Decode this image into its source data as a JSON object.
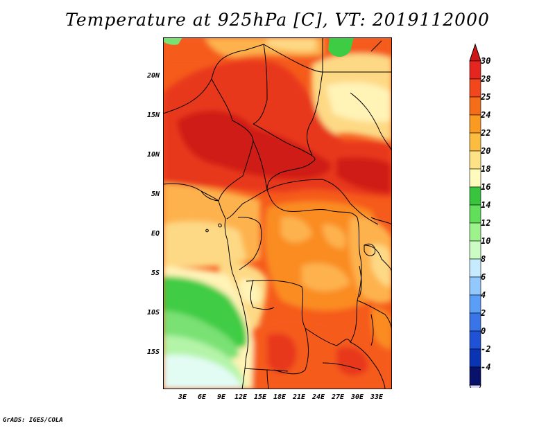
{
  "title": "Temperature at 925hPa [C], VT: 2019112000",
  "credit": "GrADS: IGES/COLA",
  "map": {
    "lat_labels": [
      "20N",
      "15N",
      "10N",
      "5N",
      "EQ",
      "5S",
      "10S",
      "15S"
    ],
    "lon_labels": [
      "3E",
      "6E",
      "9E",
      "12E",
      "15E",
      "18E",
      "21E",
      "24E",
      "27E",
      "30E",
      "33E"
    ]
  },
  "colorbar": {
    "labels": [
      "30",
      "28",
      "25",
      "24",
      "22",
      "20",
      "18",
      "16",
      "14",
      "12",
      "10",
      "8",
      "6",
      "4",
      "2",
      "0",
      "-2",
      "-4"
    ],
    "colors": [
      "#e5251f",
      "#f2461c",
      "#f66d19",
      "#fa9a20",
      "#fbbc3f",
      "#fde386",
      "#fffbbd",
      "#38c43c",
      "#62df5a",
      "#9ef28c",
      "#cdfbc4",
      "#c6ebff",
      "#93c8ff",
      "#5a9ef8",
      "#3974e8",
      "#1f52d6",
      "#0b34b4",
      "#09126b"
    ],
    "over_color": "#cf1816",
    "under_color": "#dcd8fb"
  },
  "field_colors": {
    "t30": "#d01d14",
    "t28": "#e8391b",
    "t25": "#f55b1b",
    "t24": "#fa8c22",
    "t22": "#fdb24d",
    "t20": "#fdd985",
    "t18": "#fff3b6",
    "t16": "#3fcc45",
    "t14": "#7ae174",
    "t12": "#b4f4a8",
    "t10": "#e2fcf4"
  }
}
